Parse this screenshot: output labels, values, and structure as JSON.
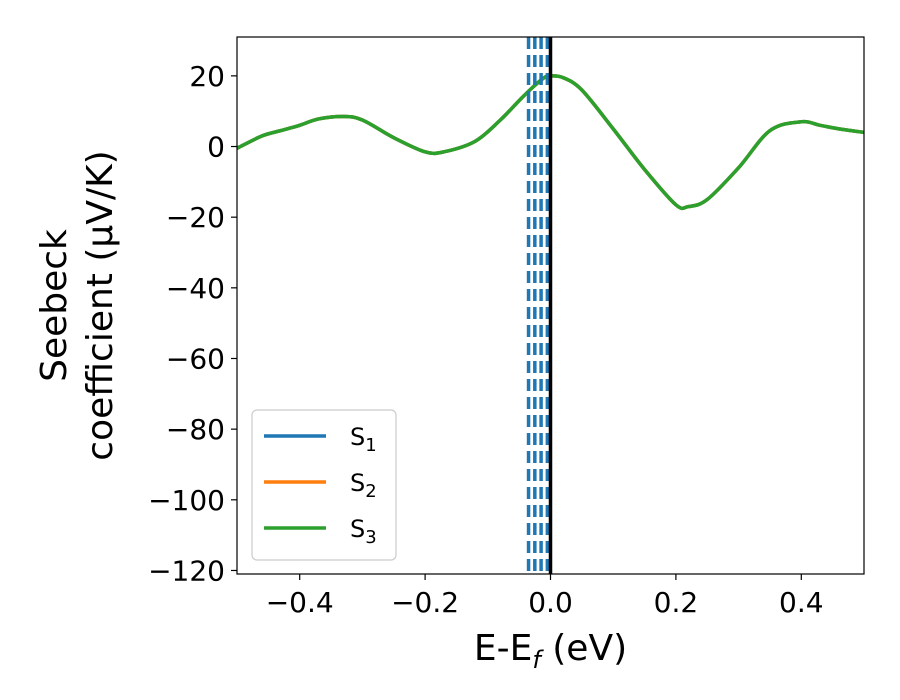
{
  "chart_data": {
    "type": "line",
    "xlabel_parts": [
      "E-E",
      "f",
      " (eV)"
    ],
    "ylabel_lines": [
      "Seebeck",
      "coefficient  (μV/K)"
    ],
    "xlim": [
      -0.5,
      0.5
    ],
    "ylim": [
      -121,
      31
    ],
    "xticks": [
      -0.4,
      -0.2,
      0.0,
      0.2,
      0.4
    ],
    "xtick_labels": [
      "−0.4",
      "−0.2",
      "0.0",
      "0.2",
      "0.4"
    ],
    "yticks": [
      20,
      0,
      -20,
      -40,
      -60,
      -80,
      -100,
      -120
    ],
    "ytick_labels": [
      "20",
      "0",
      "−20",
      "−40",
      "−60",
      "−80",
      "−100",
      "−120"
    ],
    "grid": false,
    "legend_position": "lower-left",
    "x": [
      -0.5,
      -0.46,
      -0.43,
      -0.4,
      -0.37,
      -0.33,
      -0.3,
      -0.25,
      -0.2,
      -0.17,
      -0.12,
      -0.08,
      -0.05,
      -0.03,
      -0.01,
      0.0,
      0.02,
      0.05,
      0.1,
      0.15,
      0.2,
      0.22,
      0.25,
      0.3,
      0.35,
      0.4,
      0.43,
      0.46,
      0.5
    ],
    "series": [
      {
        "name_main": "S",
        "name_sub": "1",
        "color": "#1f77b4",
        "values": [
          -0.5,
          3,
          4.5,
          6,
          7.8,
          8.5,
          7.5,
          2.5,
          -1.5,
          -1.5,
          1.5,
          7.5,
          13,
          16.5,
          19.5,
          20,
          19.5,
          16,
          5,
          -6.5,
          -16.5,
          -17,
          -15,
          -6,
          4.5,
          7,
          6,
          5,
          4
        ]
      },
      {
        "name_main": "S",
        "name_sub": "2",
        "color": "#ff7f0e",
        "values": [
          -0.5,
          3,
          4.5,
          6,
          7.8,
          8.5,
          7.5,
          2.5,
          -1.5,
          -1.5,
          1.5,
          7.5,
          13,
          16.5,
          19.5,
          20,
          19.5,
          16,
          5,
          -6.5,
          -16.5,
          -17,
          -15,
          -6,
          4.5,
          7,
          6,
          5,
          4
        ]
      },
      {
        "name_main": "S",
        "name_sub": "3",
        "color": "#2ca02c",
        "values": [
          -0.5,
          3,
          4.5,
          6,
          7.8,
          8.5,
          7.5,
          2.5,
          -1.5,
          -1.5,
          1.5,
          7.5,
          13,
          16.5,
          19.5,
          20,
          19.5,
          16,
          5,
          -6.5,
          -16.5,
          -17,
          -15,
          -6,
          4.5,
          7,
          6,
          5,
          4
        ]
      }
    ],
    "vlines_dashed": {
      "color": "#1f77b4",
      "x": [
        -0.035,
        -0.025,
        -0.015,
        -0.005
      ]
    },
    "vline_solid": {
      "color": "#000000",
      "x": 0.0
    }
  }
}
